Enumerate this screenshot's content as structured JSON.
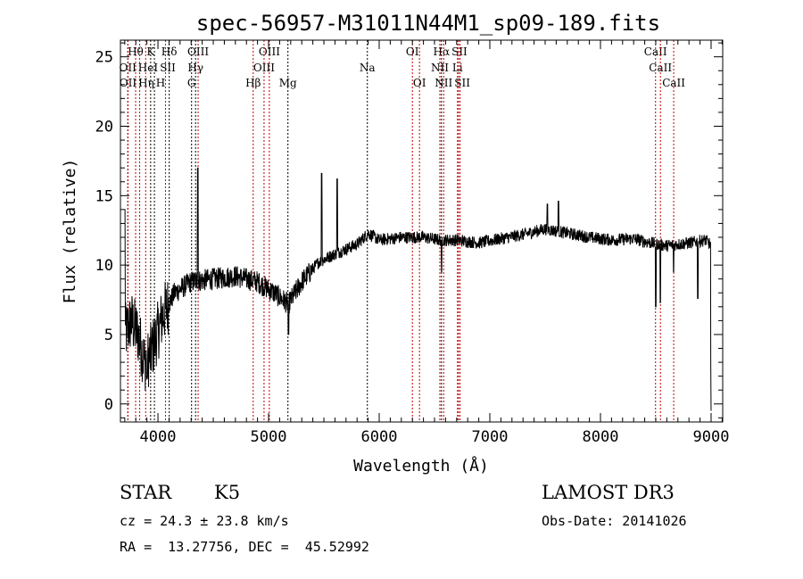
{
  "chart_data": {
    "type": "line",
    "title": "spec-56957-M31011N44M1_sp09-189.fits",
    "xlabel": "Wavelength (Å)",
    "ylabel": "Flux (relative)",
    "xlim": [
      3661,
      9105
    ],
    "ylim": [
      -1.3,
      26.2
    ],
    "xticks": [
      4000,
      5000,
      6000,
      7000,
      8000,
      9000
    ],
    "yticks": [
      0,
      5,
      10,
      15,
      20,
      25
    ],
    "grid": false,
    "continuum": [
      [
        3700,
        5
      ],
      [
        3760,
        6
      ],
      [
        3820,
        5
      ],
      [
        3880,
        3
      ],
      [
        3930,
        3.5
      ],
      [
        3970,
        4.5
      ],
      [
        4050,
        6.5
      ],
      [
        4150,
        8
      ],
      [
        4300,
        8.8
      ],
      [
        4500,
        9
      ],
      [
        4700,
        9.2
      ],
      [
        4900,
        8.8
      ],
      [
        5050,
        8
      ],
      [
        5180,
        7.2
      ],
      [
        5300,
        8.8
      ],
      [
        5450,
        10.2
      ],
      [
        5600,
        10.8
      ],
      [
        5800,
        11.5
      ],
      [
        5900,
        12.3
      ],
      [
        6000,
        11.8
      ],
      [
        6200,
        12
      ],
      [
        6400,
        12
      ],
      [
        6550,
        11.8
      ],
      [
        6700,
        11.8
      ],
      [
        6900,
        11.6
      ],
      [
        7100,
        11.9
      ],
      [
        7300,
        12.2
      ],
      [
        7500,
        12.6
      ],
      [
        7700,
        12.3
      ],
      [
        7900,
        12
      ],
      [
        8100,
        11.8
      ],
      [
        8300,
        11.9
      ],
      [
        8450,
        11.6
      ],
      [
        8600,
        11.4
      ],
      [
        8800,
        11.6
      ],
      [
        8950,
        11.8
      ],
      [
        8990,
        11.5
      ]
    ],
    "features": [
      [
        4360,
        17.0
      ],
      [
        5480,
        16.6
      ],
      [
        5620,
        16.2
      ],
      [
        3900,
        1.8
      ],
      [
        5180,
        5.0
      ],
      [
        6563,
        9.5
      ],
      [
        8500,
        7.0
      ],
      [
        8542,
        7.3
      ],
      [
        8662,
        9.5
      ],
      [
        8880,
        7.6
      ],
      [
        7620,
        14.6
      ],
      [
        7520,
        14.4
      ],
      [
        9000,
        -0.5
      ],
      [
        3700,
        14.0
      ]
    ],
    "lines": [
      {
        "w": 3798,
        "label": "Hθ",
        "row": 0,
        "color": "#c00000"
      },
      {
        "w": 3934,
        "label": "K",
        "row": 0,
        "color": "#000000"
      },
      {
        "w": 4102,
        "label": "Hδ",
        "row": 0,
        "color": "#000000"
      },
      {
        "w": 4363,
        "label": "OIII",
        "row": 0,
        "color": "#c00000"
      },
      {
        "w": 5007,
        "label": "OIII",
        "row": 0,
        "color": "#c00000"
      },
      {
        "w": 6300,
        "label": "OI",
        "row": 0,
        "color": "#c00000"
      },
      {
        "w": 6563,
        "label": "Hα",
        "row": 0,
        "color": "#000000"
      },
      {
        "w": 6717,
        "label": "SII",
        "row": 0,
        "color": "#c00000"
      },
      {
        "w": 8498,
        "label": "CaII",
        "row": 0,
        "color": "#c00000"
      },
      {
        "w": 3727,
        "label": "OII",
        "row": 1,
        "color": "#c00000"
      },
      {
        "w": 3889,
        "label": "HeI",
        "row": 1,
        "color": "#c00000"
      },
      {
        "w": 4068,
        "label": "SII",
        "row": 1,
        "color": "#c00000"
      },
      {
        "w": 4340,
        "label": "Hγ",
        "row": 1,
        "color": "#000000"
      },
      {
        "w": 4959,
        "label": "OIII",
        "row": 1,
        "color": "#c00000"
      },
      {
        "w": 5893,
        "label": "Na",
        "row": 1,
        "color": "#000000"
      },
      {
        "w": 6548,
        "label": "NII",
        "row": 1,
        "color": "#c00000"
      },
      {
        "w": 6708,
        "label": "Li",
        "row": 1,
        "color": "#c00000"
      },
      {
        "w": 8542,
        "label": "CaII",
        "row": 1,
        "color": "#c00000"
      },
      {
        "w": 3729,
        "label": "OII",
        "row": 2,
        "color": "#c00000"
      },
      {
        "w": 3835,
        "label": "Hη",
        "row": 2,
        "color": "#c00000"
      },
      {
        "w": 3968,
        "label": "H",
        "row": 2,
        "color": "#000000"
      },
      {
        "w": 4304,
        "label": "G",
        "row": 2,
        "color": "#000000"
      },
      {
        "w": 4861,
        "label": "Hβ",
        "row": 2,
        "color": "#c00000"
      },
      {
        "w": 5175,
        "label": "Mg",
        "row": 2,
        "color": "#000000"
      },
      {
        "w": 6364,
        "label": "OI",
        "row": 2,
        "color": "#c00000"
      },
      {
        "w": 6583,
        "label": "NII",
        "row": 2,
        "color": "#c00000"
      },
      {
        "w": 6731,
        "label": "SII",
        "row": 2,
        "color": "#c00000"
      },
      {
        "w": 8662,
        "label": "CaII",
        "row": 2,
        "color": "#c00000"
      }
    ]
  },
  "info": {
    "class": "STAR",
    "subclass": "K5",
    "cz": "cz = 24.3 ± 23.8 km/s",
    "radec": "RA =  13.27756, DEC =  45.52992",
    "survey": "LAMOST DR3",
    "obsdate": "Obs-Date: 20141026"
  }
}
